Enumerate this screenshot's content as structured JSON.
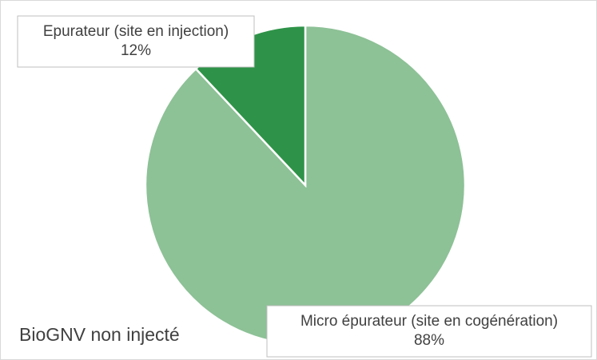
{
  "chart_data": {
    "type": "pie",
    "title": "BioGNV non injecté",
    "categories": [
      "Micro épurateur (site en cogénération)",
      "Epurateur (site en injection)"
    ],
    "values": [
      88,
      12
    ],
    "value_labels": [
      "88%",
      "12%"
    ],
    "colors": [
      "#8dc196",
      "#2e9348"
    ]
  }
}
